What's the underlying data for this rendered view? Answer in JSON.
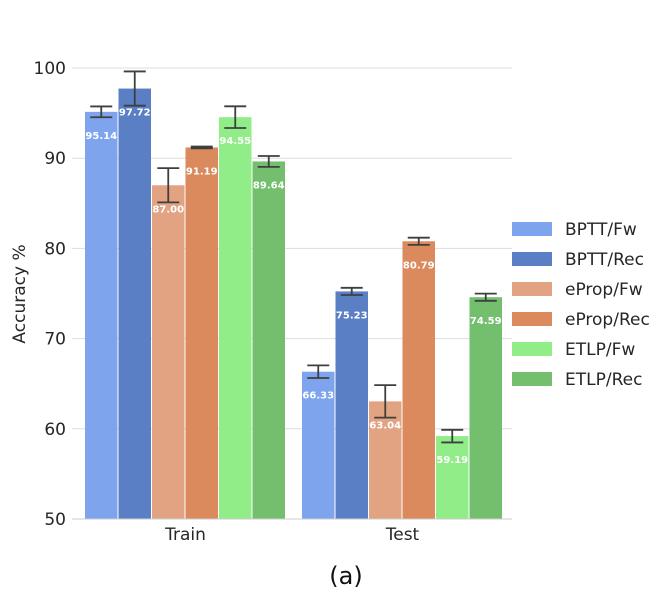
{
  "chart_data": {
    "type": "bar",
    "categories": [
      "Train",
      "Test"
    ],
    "ylabel": "Accuracy %",
    "ylim": [
      50,
      102
    ],
    "yticks": [
      50,
      60,
      70,
      80,
      90,
      100
    ],
    "grid": true,
    "legend_placement": "right",
    "caption": "(a)",
    "series": [
      {
        "name": "BPTT/Fw",
        "color": "#7ea4ee",
        "values": [
          95.14,
          66.33
        ],
        "err": [
          0.6,
          0.7
        ],
        "labels": [
          "95.14",
          "66.33"
        ]
      },
      {
        "name": "BPTT/Rec",
        "color": "#5b7fc4",
        "values": [
          97.72,
          75.23
        ],
        "err": [
          1.9,
          0.4
        ],
        "labels": [
          "97.72",
          "75.23"
        ]
      },
      {
        "name": "eProp/Fw",
        "color": "#e1a382",
        "values": [
          87.0,
          63.04
        ],
        "err": [
          1.9,
          1.8
        ],
        "labels": [
          "87.00",
          "63.04"
        ]
      },
      {
        "name": "eProp/Rec",
        "color": "#da8a5d",
        "values": [
          91.19,
          80.79
        ],
        "err": [
          0.1,
          0.4
        ],
        "labels": [
          "91.19",
          "80.79"
        ]
      },
      {
        "name": "ETLP/Fw",
        "color": "#90ed88",
        "values": [
          94.55,
          59.19
        ],
        "err": [
          1.2,
          0.7
        ],
        "labels": [
          "94.55",
          "59.19"
        ]
      },
      {
        "name": "ETLP/Rec",
        "color": "#73bf6e",
        "values": [
          89.64,
          74.59
        ],
        "err": [
          0.6,
          0.4
        ],
        "labels": [
          "89.64",
          "74.59"
        ]
      }
    ]
  }
}
